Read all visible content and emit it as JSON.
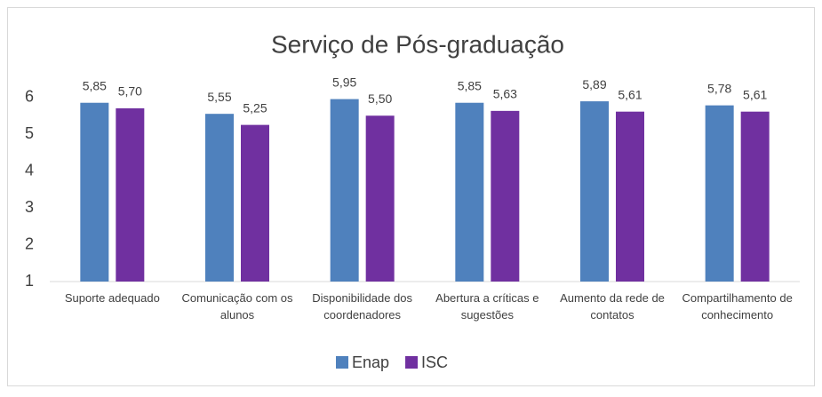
{
  "chart_data": {
    "type": "bar",
    "title": "Serviço de Pós-graduação",
    "categories": [
      "Suporte adequado",
      "Comunicação com os alunos",
      "Disponibilidade dos coordenadores",
      "Abertura a críticas e sugestões",
      "Aumento da rede de contatos",
      "Compartilhamento de conhecimento"
    ],
    "series": [
      {
        "name": "Enap",
        "color": "#4f81bd",
        "values": [
          5.85,
          5.55,
          5.95,
          5.85,
          5.89,
          5.78
        ],
        "value_labels": [
          "5,85",
          "5,55",
          "5,95",
          "5,85",
          "5,89",
          "5,78"
        ]
      },
      {
        "name": "ISC",
        "color": "#7030a0",
        "values": [
          5.7,
          5.25,
          5.5,
          5.63,
          5.61,
          5.61
        ],
        "value_labels": [
          "5,70",
          "5,25",
          "5,50",
          "5,63",
          "5,61",
          "5,61"
        ]
      }
    ],
    "ylim": [
      1,
      7
    ],
    "yticks": [
      1,
      2,
      3,
      4,
      5,
      6
    ],
    "legend": "bottom"
  }
}
